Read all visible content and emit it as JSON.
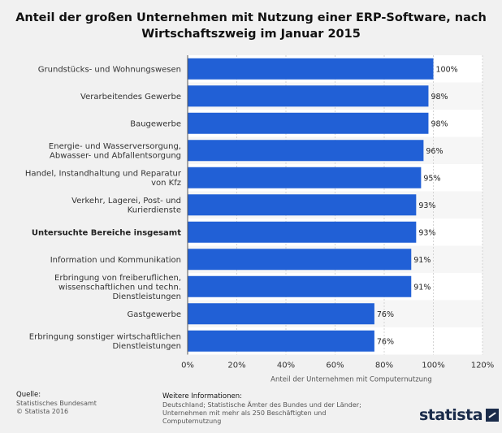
{
  "chart_data": {
    "type": "bar",
    "orientation": "horizontal",
    "title_lines": [
      "Anteil der großen Unternehmen mit Nutzung einer ERP-Software, nach",
      "Wirtschaftszweig im Januar 2015"
    ],
    "categories": [
      [
        "Grundstücks- und Wohnungswesen"
      ],
      [
        "Verarbeitendes Gewerbe"
      ],
      [
        "Baugewerbe"
      ],
      [
        "Energie- und Wasserversorgung,",
        "Abwasser- und Abfallentsorgung"
      ],
      [
        "Handel, Instandhaltung und Reparatur",
        "von Kfz"
      ],
      [
        "Verkehr, Lagerei, Post- und",
        "Kurierdienste"
      ],
      [
        "Untersuchte Bereiche insgesamt"
      ],
      [
        "Information und Kommunikation"
      ],
      [
        "Erbringung von freiberuflichen,",
        "wissenschaftlichen und techn.",
        "Dienstleistungen"
      ],
      [
        "Gastgewerbe"
      ],
      [
        "Erbringung sonstiger wirtschaftlichen",
        "Dienstleistungen"
      ]
    ],
    "bold_category_index": 6,
    "values": [
      100,
      98,
      98,
      96,
      95,
      93,
      93,
      91,
      91,
      76,
      76
    ],
    "value_labels": [
      "100%",
      "98%",
      "98%",
      "96%",
      "95%",
      "93%",
      "93%",
      "91%",
      "91%",
      "76%",
      "76%"
    ],
    "xlim": [
      0,
      120
    ],
    "xticks": [
      0,
      20,
      40,
      60,
      80,
      100,
      120
    ],
    "xtick_labels": [
      "0%",
      "20%",
      "40%",
      "60%",
      "80%",
      "100%",
      "120%"
    ],
    "xlabel": "Anteil der Unternehmen mit Computernutzung",
    "ylabel": ""
  },
  "colors": {
    "bar": "#2160d6",
    "background": "#f1f1f1",
    "plot_band_light": "#ffffff",
    "plot_band_dark": "#f6f6f6"
  },
  "footer": {
    "source_label": "Quelle:",
    "source_lines": [
      "Statistisches Bundesamt",
      "© Statista 2016"
    ],
    "info_label": "Weitere Informationen:",
    "info_text": "Deutschland; Statistische Ämter des Bundes und der Länder; Unternehmen mit mehr als 250 Beschäftigten und Computernutzung",
    "logo_text": "statista"
  }
}
